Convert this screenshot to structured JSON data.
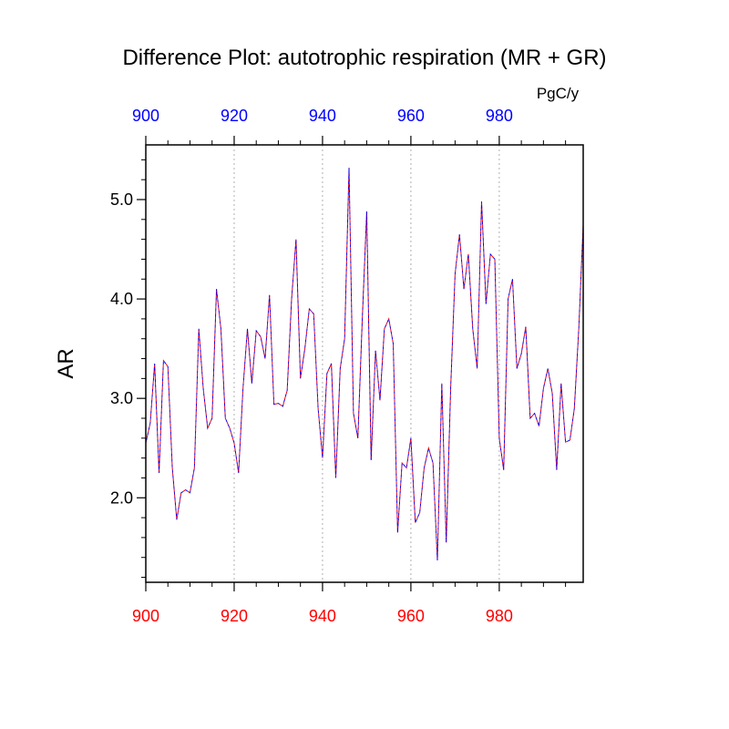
{
  "chart_data": {
    "type": "line",
    "title": "Difference Plot: autotrophic respiration (MR + GR)",
    "units": "PgC/y",
    "ylabel": "AR",
    "xlabel": "",
    "xlim": [
      900,
      999
    ],
    "ylim": [
      1.15,
      5.55
    ],
    "grid": "vertical dotted at major x ticks",
    "x_ticks": [
      900,
      920,
      940,
      960,
      980
    ],
    "x_tick_labels": [
      "900",
      "920",
      "940",
      "960",
      "980"
    ],
    "y_ticks": [
      2.0,
      3.0,
      4.0,
      5.0
    ],
    "y_tick_labels": [
      "2.0",
      "3.0",
      "4.0",
      "5.0"
    ],
    "top_axis_color": "#0000ff",
    "bottom_axis_color": "#ff0000",
    "series": [
      {
        "color": "#ff0000",
        "x_start": 900,
        "x_step": 1,
        "values": [
          2.55,
          2.75,
          3.35,
          2.25,
          3.38,
          3.32,
          2.3,
          1.78,
          2.05,
          2.08,
          2.05,
          2.3,
          3.7,
          3.1,
          2.7,
          2.8,
          4.1,
          3.7,
          2.8,
          2.7,
          2.55,
          2.25,
          3.1,
          3.7,
          3.15,
          3.68,
          3.62,
          3.4,
          4.04,
          2.94,
          2.95,
          2.92,
          3.08,
          4.0,
          4.6,
          3.2,
          3.5,
          3.9,
          3.85,
          2.9,
          2.4,
          3.25,
          3.35,
          2.2,
          3.3,
          3.6,
          5.32,
          2.85,
          2.6,
          3.8,
          4.88,
          2.38,
          3.48,
          2.98,
          3.7,
          3.8,
          3.55,
          1.65,
          2.35,
          2.3,
          2.6,
          1.75,
          1.85,
          2.3,
          2.5,
          2.35,
          1.37,
          3.15,
          1.55,
          3.1,
          4.25,
          4.65,
          4.1,
          4.45,
          3.7,
          3.3,
          4.98,
          3.95,
          4.45,
          4.4,
          2.6,
          2.28,
          4.0,
          4.2,
          3.3,
          3.45,
          3.72,
          2.8,
          2.85,
          2.72,
          3.1,
          3.3,
          3.05,
          2.28,
          3.15,
          2.56,
          2.58,
          2.9,
          3.7,
          4.75
        ]
      },
      {
        "color": "#0000ff",
        "x_start": 900,
        "x_step": 1,
        "values": [
          2.55,
          2.75,
          3.35,
          2.25,
          3.38,
          3.32,
          2.3,
          1.78,
          2.05,
          2.08,
          2.05,
          2.3,
          3.7,
          3.1,
          2.7,
          2.8,
          4.1,
          3.7,
          2.8,
          2.7,
          2.55,
          2.25,
          3.1,
          3.7,
          3.15,
          3.68,
          3.62,
          3.4,
          4.04,
          2.94,
          2.95,
          2.92,
          3.08,
          4.0,
          4.6,
          3.2,
          3.5,
          3.9,
          3.85,
          2.9,
          2.4,
          3.25,
          3.35,
          2.2,
          3.3,
          3.6,
          5.32,
          2.85,
          2.6,
          3.8,
          4.88,
          2.38,
          3.48,
          2.98,
          3.7,
          3.8,
          3.55,
          1.65,
          2.35,
          2.3,
          2.6,
          1.75,
          1.85,
          2.3,
          2.5,
          2.35,
          1.37,
          3.15,
          1.55,
          3.1,
          4.25,
          4.65,
          4.1,
          4.45,
          3.7,
          3.3,
          4.98,
          3.95,
          4.45,
          4.4,
          2.6,
          2.28,
          4.0,
          4.2,
          3.3,
          3.45,
          3.72,
          2.8,
          2.85,
          2.72,
          3.1,
          3.3,
          3.05,
          2.28,
          3.15,
          2.56,
          2.58,
          2.9,
          3.7,
          4.75
        ]
      }
    ]
  }
}
